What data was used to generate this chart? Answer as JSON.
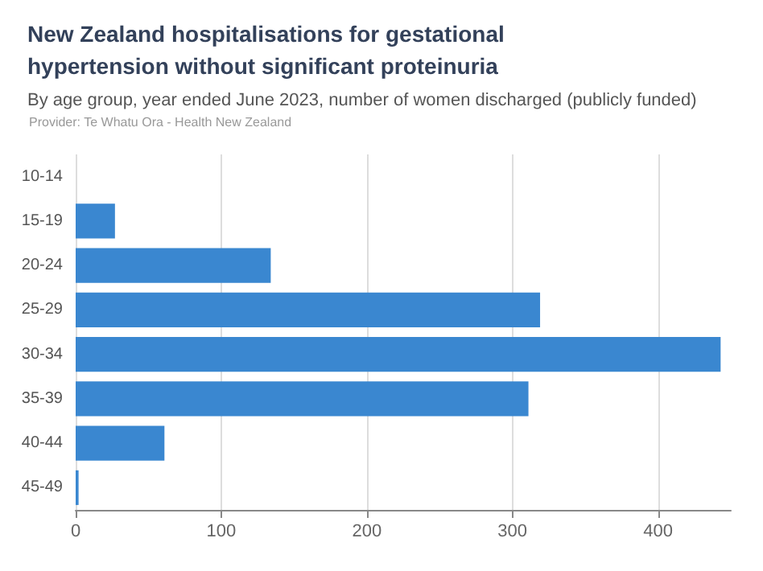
{
  "chart_data": {
    "type": "bar",
    "orientation": "horizontal",
    "title": "New Zealand hospitalisations for gestational hypertension without significant proteinuria",
    "subtitle": "By age group, year ended June 2023, number of women discharged (publicly funded)",
    "annotations": [
      "Provider: Te Whatu Ora - Health New Zealand"
    ],
    "categories": [
      "10-14",
      "15-19",
      "20-24",
      "25-29",
      "30-34",
      "35-39",
      "40-44",
      "45-49"
    ],
    "values": [
      0,
      27,
      134,
      319,
      443,
      311,
      61,
      2
    ],
    "color": "#3a87d0",
    "xlim": [
      0,
      450
    ],
    "xticks": [
      0,
      100,
      200,
      300,
      400
    ],
    "grid": "x"
  }
}
